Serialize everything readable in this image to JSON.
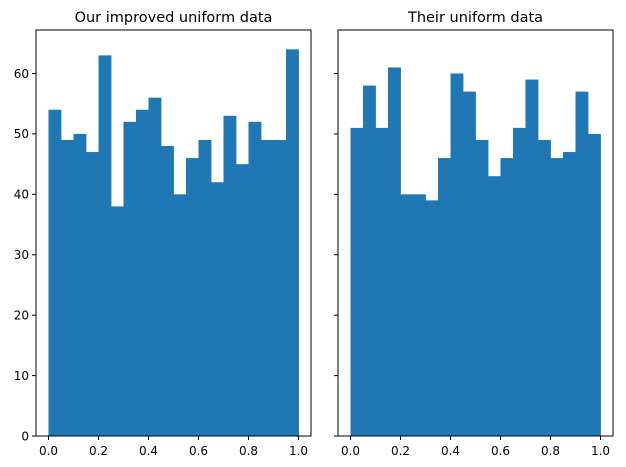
{
  "chart_data": [
    {
      "type": "bar",
      "title": "Our improved uniform data",
      "xlabel": "",
      "ylabel": "",
      "xlim": [
        -0.05,
        1.05
      ],
      "ylim": [
        0,
        67.2
      ],
      "bin_edges": [
        0.0,
        0.05,
        0.1,
        0.15,
        0.2,
        0.25,
        0.3,
        0.35,
        0.4,
        0.45,
        0.5,
        0.55,
        0.6,
        0.65,
        0.7,
        0.75,
        0.8,
        0.85,
        0.9,
        0.95,
        1.0
      ],
      "values": [
        54,
        49,
        50,
        47,
        63,
        38,
        52,
        54,
        56,
        48,
        40,
        46,
        49,
        42,
        53,
        45,
        52,
        49,
        49,
        64
      ],
      "xticks": [
        "0.0",
        "0.2",
        "0.4",
        "0.6",
        "0.8",
        "1.0"
      ],
      "yticks": [
        "0",
        "10",
        "20",
        "30",
        "40",
        "50",
        "60"
      ],
      "color": "#1f77b4",
      "grid": false
    },
    {
      "type": "bar",
      "title": "Their uniform data",
      "xlabel": "",
      "ylabel": "",
      "xlim": [
        -0.05,
        1.05
      ],
      "ylim": [
        0,
        67.2
      ],
      "bin_edges": [
        0.0,
        0.05,
        0.1,
        0.15,
        0.2,
        0.25,
        0.3,
        0.35,
        0.4,
        0.45,
        0.5,
        0.55,
        0.6,
        0.65,
        0.7,
        0.75,
        0.8,
        0.85,
        0.9,
        0.95,
        1.0
      ],
      "values": [
        51,
        58,
        51,
        61,
        40,
        40,
        39,
        46,
        60,
        57,
        49,
        43,
        46,
        51,
        59,
        49,
        46,
        47,
        57,
        50
      ],
      "xticks": [
        "0.0",
        "0.2",
        "0.4",
        "0.6",
        "0.8",
        "1.0"
      ],
      "yticks": [
        "0",
        "10",
        "20",
        "30",
        "40",
        "50",
        "60"
      ],
      "color": "#1f77b4",
      "grid": false
    }
  ]
}
